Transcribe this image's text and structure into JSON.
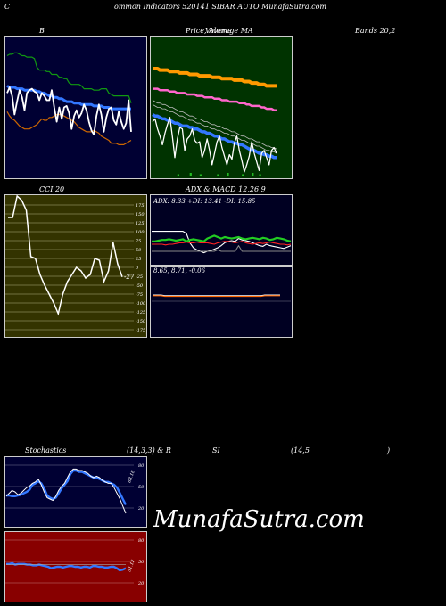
{
  "header": {
    "c_letter": "C",
    "title": "ommon  Indicators 520141 SIBAR AUTO MunafaSutra.com"
  },
  "titles": {
    "bb": "B",
    "price_a": "Price,",
    "price_b": "Volume",
    "price_c": "Average  MA",
    "bands": "Bands 20,2",
    "cci": "CCI 20",
    "adx_macd": "ADX  & MACD 12,26,9",
    "stoch_a": "Stochastics",
    "stoch_b": "(14,3,3) & R",
    "stoch_c": "SI",
    "stoch_d": "(14,5",
    "stoch_e": ")"
  },
  "watermark": "MunafaSutra.com",
  "colors": {
    "bb_bg": "#000033",
    "price_bg": "#003300",
    "cci_bg": "#333300",
    "adx_bg": "#000022",
    "rsi_bg": "#880000",
    "blue": "#3377ff",
    "green": "#22bb22",
    "orange": "#ff9900",
    "pink": "#ff66cc",
    "brown": "#cc6600"
  },
  "chart_data": [
    {
      "type": "line",
      "name": "bollinger",
      "series": [
        {
          "name": "upper",
          "color": "#119911",
          "values": [
            14,
            13,
            13,
            12,
            12,
            13,
            14,
            14,
            15,
            15,
            15,
            16,
            22,
            24,
            24,
            24,
            25,
            25,
            27,
            27,
            27,
            29,
            29,
            30,
            30,
            33,
            34,
            34,
            34,
            34,
            35,
            37,
            37,
            37,
            37,
            38,
            38,
            38,
            37,
            37,
            37,
            40,
            41,
            42,
            42,
            42,
            42,
            42,
            42,
            42,
            47
          ]
        },
        {
          "name": "middle",
          "color": "#3377ff",
          "values": [
            35,
            36,
            36,
            36,
            37,
            37,
            37,
            38,
            38,
            38,
            38,
            38,
            39,
            39,
            40,
            40,
            41,
            42,
            42,
            43,
            43,
            44,
            44,
            45,
            46,
            46,
            46,
            47,
            47,
            47,
            48,
            48,
            48,
            48,
            48,
            49,
            49,
            49,
            49,
            50,
            50,
            50,
            51,
            51,
            51,
            51,
            51,
            51,
            51,
            51,
            51
          ]
        },
        {
          "name": "lower",
          "color": "#cc6600",
          "values": [
            53,
            56,
            58,
            59,
            61,
            63,
            64,
            65,
            65,
            65,
            64,
            63,
            62,
            60,
            58,
            59,
            59,
            57,
            57,
            56,
            55,
            55,
            55,
            56,
            57,
            58,
            59,
            60,
            62,
            64,
            65,
            66,
            67,
            67,
            67,
            66,
            67,
            68,
            70,
            71,
            72,
            73,
            75,
            75,
            75,
            76,
            76,
            76,
            75,
            74,
            73
          ]
        },
        {
          "name": "close",
          "color": "#ffffff",
          "values": [
            40,
            36,
            42,
            55,
            46,
            38,
            43,
            52,
            40,
            38,
            37,
            39,
            40,
            45,
            40,
            42,
            45,
            45,
            38,
            50,
            60,
            50,
            58,
            50,
            49,
            54,
            65,
            56,
            52,
            57,
            54,
            48,
            52,
            60,
            66,
            69,
            56,
            48,
            55,
            67,
            57,
            51,
            50,
            59,
            62,
            53,
            60,
            65,
            61,
            45,
            67
          ]
        }
      ]
    },
    {
      "type": "line",
      "name": "price_ma",
      "series": [
        {
          "name": "ma_orange",
          "color": "#ff9900",
          "values": [
            23,
            23,
            23,
            24,
            24,
            24,
            24,
            25,
            25,
            25,
            25,
            26,
            26,
            26,
            26,
            27,
            27,
            27,
            27,
            28,
            28,
            28,
            28,
            28,
            29,
            29,
            29,
            29,
            30,
            30,
            30,
            30,
            30,
            31,
            31,
            31,
            31,
            32,
            32,
            32,
            33,
            33,
            33,
            34,
            34,
            34,
            35,
            35,
            35,
            35,
            35
          ]
        },
        {
          "name": "ma_pink",
          "color": "#ff66cc",
          "values": [
            37,
            37,
            37,
            38,
            38,
            38,
            38,
            39,
            39,
            39,
            40,
            40,
            40,
            40,
            41,
            41,
            41,
            41,
            42,
            42,
            42,
            43,
            43,
            43,
            43,
            44,
            44,
            44,
            45,
            45,
            45,
            46,
            46,
            46,
            46,
            47,
            47,
            47,
            48,
            48,
            49,
            49,
            49,
            49,
            50,
            50,
            51,
            51,
            51,
            52,
            52
          ]
        },
        {
          "name": "ma_blue",
          "color": "#3377ff",
          "values": [
            55,
            56,
            56,
            57,
            58,
            58,
            59,
            59,
            60,
            61,
            61,
            62,
            63,
            63,
            63,
            64,
            64,
            65,
            65,
            66,
            67,
            67,
            68,
            68,
            69,
            70,
            70,
            71,
            72,
            72,
            73,
            74,
            74,
            75,
            75,
            76,
            76,
            77,
            78,
            79,
            80,
            80,
            81,
            82,
            82,
            83,
            83,
            84,
            84,
            85,
            85
          ]
        },
        {
          "name": "ma_gray",
          "color": "#bbbbbb",
          "values": [
            45,
            46,
            47,
            47,
            48,
            48,
            49,
            50,
            50,
            51,
            52,
            53,
            53,
            54,
            55,
            56,
            56,
            57,
            58,
            58,
            59,
            60,
            60,
            61,
            62,
            62,
            63,
            63,
            64,
            65,
            65,
            66,
            67,
            67,
            68,
            69,
            70,
            70,
            71,
            72,
            72,
            73,
            74,
            74,
            75,
            76,
            77,
            77,
            78,
            78,
            79
          ]
        },
        {
          "name": "price",
          "color": "#ffffff",
          "values": [
            60,
            58,
            65,
            70,
            76,
            68,
            62,
            57,
            70,
            85,
            72,
            64,
            65,
            80,
            72,
            70,
            65,
            73,
            75,
            74,
            85,
            80,
            72,
            80,
            90,
            82,
            74,
            70,
            78,
            84,
            90,
            83,
            86,
            75,
            70,
            80,
            87,
            95,
            90,
            84,
            74,
            82,
            88,
            94,
            82,
            80,
            85,
            90,
            80,
            78,
            82
          ]
        }
      ],
      "volume": [
        0,
        0,
        0,
        0,
        0,
        0,
        0,
        0,
        0,
        0,
        1,
        0,
        0,
        0,
        0,
        2,
        0,
        0,
        0,
        1,
        0,
        0,
        0,
        0,
        0,
        0,
        1,
        0,
        0,
        0,
        2,
        0,
        0,
        0,
        0,
        0,
        1,
        0,
        0,
        0,
        2,
        0,
        0,
        1,
        0,
        0,
        0,
        0,
        0,
        0,
        0
      ]
    },
    {
      "type": "line",
      "name": "cci",
      "ticks": [
        "175",
        "150",
        "125",
        "100",
        "75",
        "50",
        "25",
        "0",
        "-25",
        "-50",
        "-75",
        "-100",
        "-125",
        "-150",
        "-175"
      ],
      "last_label": "-27",
      "values": [
        140,
        140,
        200,
        188,
        160,
        30,
        25,
        -20,
        -50,
        -75,
        -100,
        -130,
        -75,
        -40,
        -20,
        0,
        -10,
        -30,
        -20,
        25,
        20,
        -40,
        -10,
        70,
        10,
        -27
      ]
    },
    {
      "type": "line",
      "name": "adx",
      "label": "ADX: 8.33  +DI: 13.41  -DI: 15.85",
      "series": [
        {
          "name": "adx",
          "color": "#ffffff",
          "values": [
            52,
            52,
            52,
            52,
            52,
            52,
            52,
            52,
            52,
            52,
            55,
            68,
            75,
            78,
            80,
            82,
            80,
            79,
            77,
            75,
            72,
            68,
            66,
            65,
            66,
            62,
            64,
            65,
            66,
            68,
            70,
            72,
            73,
            70,
            72,
            73,
            74,
            75,
            76,
            74,
            72
          ]
        },
        {
          "name": "+di",
          "color": "#22cc22",
          "values": [
            66,
            66,
            65,
            64,
            64,
            63,
            64,
            65,
            64,
            63,
            66,
            64,
            63,
            64,
            65,
            66,
            62,
            60,
            58,
            60,
            62,
            60,
            61,
            62,
            61,
            60,
            62,
            63,
            62,
            61,
            62,
            63,
            61,
            62,
            64,
            63,
            61,
            62,
            63,
            65,
            66
          ]
        },
        {
          "name": "-di",
          "color": "#ff2222",
          "values": [
            70,
            70,
            70,
            70,
            71,
            70,
            70,
            69,
            68,
            68,
            67,
            68,
            68,
            67,
            68,
            68,
            68,
            69,
            70,
            68,
            67,
            66,
            66,
            67,
            68,
            67,
            66,
            68,
            69,
            70,
            69,
            68,
            69,
            68,
            67,
            68,
            69,
            70,
            70,
            71,
            70
          ]
        },
        {
          "name": "gray",
          "color": "#888888",
          "values": [
            80,
            80,
            80,
            80,
            80,
            80,
            80,
            80,
            80,
            80,
            80,
            80,
            80,
            80,
            80,
            80,
            80,
            80,
            80,
            78,
            80,
            80,
            80,
            80,
            80,
            72,
            80,
            80,
            80,
            80,
            80,
            80,
            80,
            80,
            80,
            80,
            80,
            80,
            80,
            80,
            80
          ]
        }
      ]
    },
    {
      "type": "line",
      "name": "macd",
      "label": "8.65,  8.71,  -0.06",
      "series": [
        {
          "name": "macd",
          "color": "#ffffff",
          "values": [
            40,
            40,
            40,
            41,
            41,
            41,
            41,
            41,
            41,
            41,
            41,
            41,
            41,
            41,
            41,
            41,
            41,
            41,
            41,
            41,
            41,
            41,
            41,
            41,
            41,
            41,
            41,
            41,
            41,
            40,
            40,
            40,
            40,
            40
          ]
        },
        {
          "name": "signal",
          "color": "#ff6600",
          "values": [
            41,
            41,
            41,
            42,
            42,
            42,
            42,
            42,
            42,
            42,
            42,
            42,
            42,
            42,
            42,
            42,
            42,
            42,
            42,
            42,
            42,
            42,
            42,
            42,
            42,
            42,
            42,
            42,
            42,
            41,
            41,
            41,
            41,
            41
          ]
        }
      ]
    },
    {
      "type": "line",
      "name": "stochastics",
      "ticks": [
        "80",
        "50",
        "20"
      ],
      "last_label": "88.18",
      "series": [
        {
          "name": "%K",
          "color": "#3377ff",
          "values": [
            55,
            55,
            56,
            56,
            55,
            54,
            52,
            50,
            47,
            40,
            38,
            35,
            38,
            45,
            55,
            58,
            60,
            58,
            52,
            45,
            40,
            35,
            25,
            20,
            20,
            22,
            22,
            24,
            26,
            28,
            30,
            30,
            32,
            34,
            36,
            36,
            38,
            40,
            44,
            52,
            60,
            68
          ]
        },
        {
          "name": "%D",
          "color": "#ffffff",
          "values": [
            56,
            52,
            48,
            50,
            54,
            52,
            48,
            44,
            42,
            38,
            36,
            32,
            40,
            50,
            58,
            60,
            62,
            56,
            48,
            42,
            38,
            30,
            22,
            18,
            18,
            20,
            20,
            22,
            24,
            28,
            30,
            28,
            30,
            34,
            36,
            38,
            38,
            44,
            52,
            60,
            70,
            80
          ]
        }
      ]
    },
    {
      "type": "line",
      "name": "rsi",
      "ticks": [
        "80",
        "50",
        "20"
      ],
      "last_label": "51.12",
      "series": [
        {
          "name": "rsi",
          "color": "#3377ff",
          "values": [
            46,
            46,
            45,
            47,
            46,
            46,
            46,
            47,
            47,
            48,
            48,
            47,
            48,
            49,
            50,
            52,
            51,
            50,
            50,
            51,
            50,
            49,
            49,
            50,
            50,
            51,
            50,
            50,
            51,
            49,
            49,
            50,
            50,
            51,
            51,
            50,
            50,
            52,
            55,
            54,
            52
          ]
        },
        {
          "name": "mid",
          "color": "#aaaaaa",
          "values": [
            47,
            47,
            47,
            47,
            47,
            47,
            47,
            47,
            47,
            47,
            47,
            47,
            47,
            47,
            47,
            47,
            47,
            47,
            47,
            47,
            47,
            47,
            47,
            47,
            47,
            47,
            47,
            47,
            47,
            47,
            47,
            47,
            47,
            47,
            47,
            47,
            47,
            47,
            47,
            47,
            47
          ]
        }
      ]
    }
  ]
}
